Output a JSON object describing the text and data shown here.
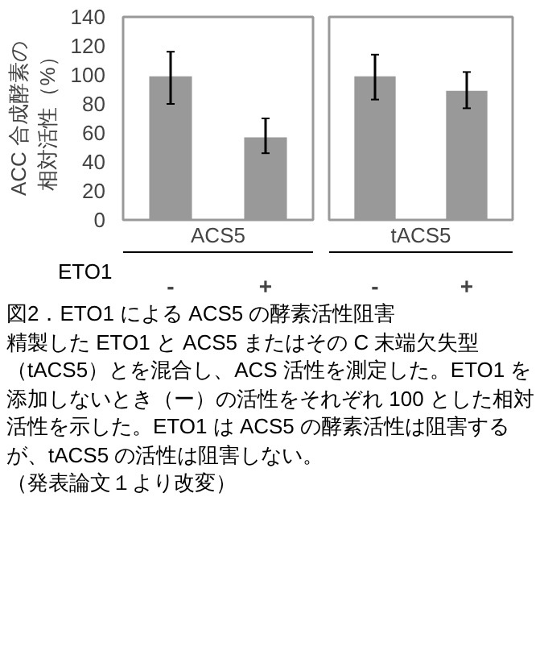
{
  "chart_data": [
    {
      "type": "bar",
      "categories": [
        "-",
        "+"
      ],
      "xlabel": "ACS5",
      "ylabel": "ACC 合成酵素の相対活性（%）",
      "values": [
        99,
        57
      ],
      "errors": [
        [
          80,
          116
        ],
        [
          46,
          70
        ]
      ],
      "color": "#999999",
      "ylim": [
        0,
        140
      ],
      "yticks": [
        0,
        20,
        40,
        60,
        80,
        100,
        120,
        140
      ],
      "grid": false,
      "title": "図2．ETO1 による ACS5 の酵素活性阻害",
      "annotations": [
        "ETO1",
        "精製した ETO1 と ACS5 またはその C 末端欠失型（tACS5）とを混合し、ACS 活性を測定した。ETO1 を添加しないとき（ー）の活性をそれぞれ 100 とした相対活性を示した。ETO1 は ACS5 の酵素活性は阻害するが、tACS5 の活性は阻害しない。",
        "（発表論文１より改変）"
      ]
    },
    {
      "type": "bar",
      "categories": [
        "-",
        "+"
      ],
      "xlabel": "tACS5",
      "values": [
        99,
        89
      ],
      "errors": [
        [
          83,
          114
        ],
        [
          77,
          102
        ]
      ],
      "color": "#999999",
      "ylim": [
        0,
        140
      ],
      "yticks": [
        0,
        20,
        40,
        60,
        80,
        100,
        120,
        140
      ],
      "grid": false,
      "tick_labels": "x"
    }
  ]
}
